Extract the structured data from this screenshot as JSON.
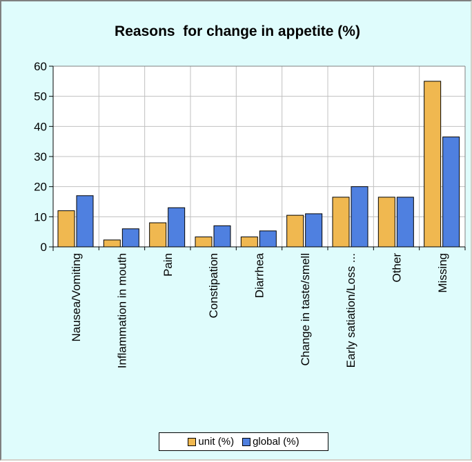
{
  "chart_data": {
    "type": "bar",
    "title": "Reasons  for change in appetite (%)",
    "categories": [
      "Nausea/Vomiting",
      "Inflammation in mouth",
      "Pain",
      "Constipation",
      "Diarrhea",
      "Change in taste/smell",
      "Early satiation/Loss ...",
      "Other",
      "Missing"
    ],
    "series": [
      {
        "name": "unit (%)",
        "color": "#f0b850",
        "values": [
          12,
          2.3,
          8,
          3.3,
          3.3,
          10.5,
          16.5,
          16.5,
          55
        ]
      },
      {
        "name": "global (%)",
        "color": "#4f80e0",
        "values": [
          17,
          6,
          13,
          7,
          5.3,
          11,
          20,
          16.5,
          36.5
        ]
      }
    ],
    "yticks": [
      0,
      10,
      20,
      30,
      40,
      50,
      60
    ],
    "ylim": [
      0,
      60
    ],
    "xlabel": "",
    "ylabel": "",
    "grid": true,
    "legend_position": "bottom"
  }
}
